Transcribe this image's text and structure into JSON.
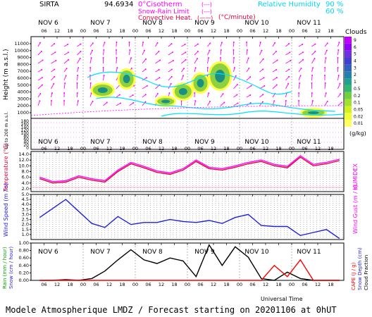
{
  "header": {
    "station": "SIRTA",
    "coord": "94.6934",
    "isotherm": "0°Cisotherm",
    "snow_rain": "Snow-Rain Limit",
    "convective": "Convective Heat.",
    "rate_unit": "(°C/minute)",
    "rh_label": "Relative Humidity",
    "rh_90": "90 %",
    "rh_60": "60 %"
  },
  "days": [
    "NOV  6",
    "NOV  7",
    "NOV  8",
    "NOV  9",
    "NOV 10",
    "NOV 11"
  ],
  "hour_ticks": [
    "06",
    "12",
    "18",
    "00",
    "06",
    "12",
    "18",
    "00",
    "06",
    "12",
    "18",
    "00",
    "06",
    "12",
    "18",
    "00",
    "06",
    "12",
    "18",
    "00",
    "06",
    "12",
    "18"
  ],
  "panel1": {
    "ylabel": "Height (m a.s.l.)",
    "ylabel2": "Up to 200 m a.s.l.",
    "yticks": [
      "11000",
      "10000",
      "9000",
      "8000",
      "7000",
      "6000",
      "5000",
      "4000",
      "3000",
      "2000",
      "1000"
    ],
    "yticks_low": [
      "180",
      "160",
      "140",
      "120",
      "100",
      "80",
      "60",
      "40",
      "20",
      "0"
    ],
    "colorbar_title": "Clouds",
    "colorbar_ticks": [
      "9",
      "6",
      "5",
      "4",
      "3",
      "2",
      "1",
      "0.5",
      "0.2",
      "0.1",
      "0.05",
      "0.02",
      "0.01"
    ],
    "colorbar_unit": "(g/kg)"
  },
  "panel2": {
    "ylabel": "Temperature (°C)",
    "ylabel_right": "HUMIDEX",
    "yticks": [
      "14.0",
      "12.0",
      "10.0",
      "8.0",
      "6.0",
      "4.0",
      "2.0"
    ]
  },
  "panel3": {
    "ylabel": "Wind Speed (m / s)",
    "ylabel_right": "Wind Gust (m / s)",
    "yticks": [
      "5.0",
      "4.5",
      "4.0",
      "3.5",
      "3.0",
      "2.5",
      "2.0",
      "1.5",
      "1.0"
    ]
  },
  "panel4": {
    "ylabel_rain": "Rain (mm / hour)",
    "ylabel_snow": "Snow (cm / hour)",
    "ylabel_right_cape": "CAPE (J / g)",
    "ylabel_right_snow": "Snow Depth (cm)",
    "ylabel_right_cloud": "Cloud Fraction",
    "yticks": [
      "1.00",
      "0.80",
      "0.60",
      "0.40",
      "0.20",
      "0.00"
    ],
    "xlabel": "Universal Time"
  },
  "footer": "Modele Atmospherique LMDZ / Forecast starting on 20201106 at 0hUT",
  "colors": {
    "temp": "#e8003c",
    "wind": "#1e1ee0",
    "cloud_fraction": "#000000",
    "cape": "#ff0000",
    "arrows": "#ff00ff",
    "rh": "#00e0ff",
    "isotherm": "#ff00ff"
  },
  "chart_data": [
    {
      "type": "line",
      "title": "Temperature",
      "ylabel": "Temperature (°C)",
      "ylim": [
        1,
        15
      ],
      "x_hours": [
        0,
        6,
        12,
        18,
        24,
        30,
        36,
        42,
        48,
        54,
        60,
        66,
        72,
        78,
        84,
        90,
        96,
        102,
        108,
        114,
        120,
        126,
        132,
        138
      ],
      "series": [
        {
          "values": [
            6.0,
            4.5,
            4.8,
            6.5,
            5.5,
            4.8,
            8.5,
            11.2,
            9.8,
            8.2,
            7.5,
            9.0,
            12.0,
            9.5,
            9.0,
            10.0,
            11.2,
            12.0,
            10.5,
            9.8,
            13.5,
            10.5,
            11.2,
            12.3
          ]
        }
      ]
    },
    {
      "type": "line",
      "title": "Wind Speed",
      "ylabel": "Wind Speed (m / s)",
      "ylim": [
        0.5,
        5.0
      ],
      "x_hours": [
        0,
        6,
        12,
        18,
        24,
        30,
        36,
        42,
        48,
        54,
        60,
        66,
        72,
        78,
        84,
        90,
        96,
        102,
        108,
        114,
        120,
        126,
        132,
        138
      ],
      "series": [
        {
          "values": [
            2.7,
            3.6,
            4.5,
            3.3,
            2.1,
            1.7,
            2.8,
            2.0,
            2.2,
            2.2,
            2.5,
            2.3,
            2.2,
            2.4,
            2.1,
            2.7,
            3.0,
            1.9,
            1.8,
            1.8,
            0.9,
            1.2,
            1.5,
            0.6
          ]
        }
      ]
    },
    {
      "type": "line",
      "title": "Cloud Fraction",
      "ylabel": "Cloud Fraction",
      "ylim": [
        0,
        1
      ],
      "x_hours": [
        0,
        6,
        12,
        18,
        24,
        30,
        36,
        42,
        48,
        54,
        60,
        66,
        72,
        78,
        84,
        90,
        96,
        102,
        108,
        114,
        120,
        126,
        132,
        138
      ],
      "series": [
        {
          "values": [
            0.0,
            0.0,
            0.02,
            0.0,
            0.05,
            0.25,
            0.55,
            0.82,
            0.55,
            0.45,
            0.6,
            0.52,
            0.1,
            0.95,
            0.4,
            0.9,
            0.62,
            0.05,
            0.0,
            0.22,
            0.05,
            0.0,
            0.0,
            0.0
          ]
        },
        {
          "values": [
            0,
            0,
            0,
            0,
            0,
            0,
            0,
            0,
            0,
            0,
            0,
            0,
            0,
            0,
            0,
            0,
            0,
            0,
            0.4,
            0.1,
            0.55,
            0,
            0,
            0
          ]
        }
      ]
    }
  ]
}
